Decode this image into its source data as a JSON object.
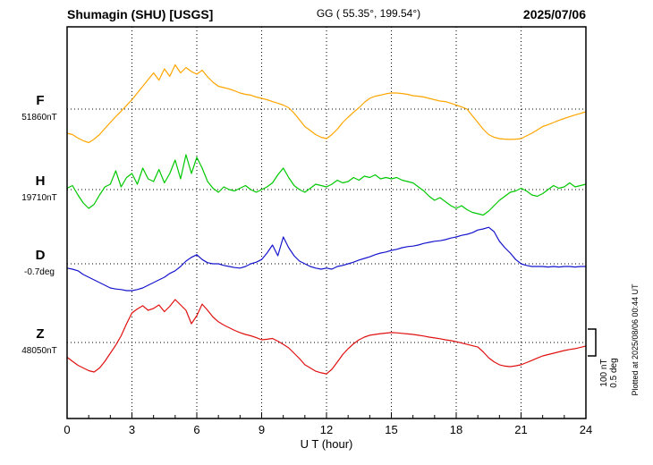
{
  "header": {
    "station": "Shumagin (SHU)  [USGS]",
    "coords": "GG ( 55.35°, 199.54°)",
    "date": "2025/07/06"
  },
  "scale_bar": {
    "line1": "100 nT",
    "line2": "0.5 deg"
  },
  "side_note": "Plotted at 2025/08/06 00:44 UT",
  "chart_data": {
    "type": "line",
    "title": "Shumagin (SHU) [USGS] magnetogram 2025/07/06",
    "xlabel": "U T (hour)",
    "x_range": [
      0,
      24
    ],
    "x_ticks": [
      0,
      3,
      6,
      9,
      12,
      15,
      18,
      21,
      24
    ],
    "grid": "dotted vertical every 3 hours, dotted horizontal at each trace baseline",
    "sample_interval_hours": 0.25,
    "scale": {
      "nT_per_div": 100,
      "deg_per_div": 0.5
    },
    "series": [
      {
        "name": "F",
        "baseline_label": "51860nT",
        "baseline_value": 51860,
        "unit": "nT",
        "color": "#FFA500",
        "values": [
          -90,
          -95,
          -108,
          -118,
          -125,
          -112,
          -95,
          -72,
          -50,
          -28,
          -8,
          14,
          35,
          60,
          85,
          110,
          135,
          108,
          150,
          122,
          165,
          135,
          155,
          140,
          130,
          145,
          120,
          100,
          85,
          80,
          75,
          68,
          60,
          55,
          52,
          45,
          40,
          35,
          28,
          22,
          15,
          5,
          -15,
          -40,
          -65,
          -80,
          -95,
          -105,
          -110,
          -95,
          -75,
          -50,
          -30,
          -12,
          5,
          25,
          40,
          48,
          52,
          57,
          60,
          60,
          58,
          55,
          50,
          48,
          45,
          40,
          35,
          30,
          28,
          22,
          15,
          8,
          0,
          -25,
          -50,
          -75,
          -95,
          -105,
          -110,
          -112,
          -113,
          -112,
          -110,
          -100,
          -90,
          -78,
          -65,
          -58,
          -50,
          -42,
          -35,
          -28,
          -22,
          -16,
          -10
        ]
      },
      {
        "name": "H",
        "baseline_label": "19710nT",
        "baseline_value": 19710,
        "unit": "nT",
        "color": "#00C800",
        "values": [
          5,
          15,
          -20,
          -50,
          -70,
          -55,
          -20,
          10,
          20,
          70,
          10,
          45,
          60,
          20,
          80,
          40,
          30,
          75,
          25,
          60,
          110,
          40,
          130,
          60,
          120,
          80,
          30,
          5,
          -10,
          10,
          0,
          -5,
          5,
          15,
          0,
          -10,
          0,
          10,
          25,
          55,
          80,
          45,
          15,
          0,
          -10,
          5,
          20,
          15,
          10,
          20,
          35,
          25,
          30,
          45,
          35,
          50,
          45,
          55,
          40,
          45,
          40,
          45,
          35,
          30,
          25,
          10,
          -5,
          -25,
          -40,
          -30,
          -45,
          -60,
          -70,
          -60,
          -75,
          -85,
          -90,
          -95,
          -80,
          -60,
          -40,
          -25,
          -10,
          -5,
          5,
          -5,
          -20,
          -25,
          -15,
          0,
          15,
          5,
          10,
          25,
          10,
          15,
          20
        ]
      },
      {
        "name": "D",
        "baseline_label": "-0.7deg",
        "baseline_value": -0.7,
        "unit": "deg",
        "color": "#1515CD",
        "values": [
          -0.08,
          -0.1,
          -0.13,
          -0.2,
          -0.25,
          -0.3,
          -0.35,
          -0.4,
          -0.45,
          -0.47,
          -0.48,
          -0.5,
          -0.5,
          -0.48,
          -0.45,
          -0.4,
          -0.35,
          -0.3,
          -0.25,
          -0.18,
          -0.13,
          -0.05,
          0.05,
          0.12,
          0.17,
          0.08,
          0.02,
          0.0,
          0.0,
          -0.03,
          -0.05,
          -0.07,
          -0.08,
          -0.05,
          0.0,
          0.03,
          0.08,
          0.2,
          0.35,
          0.15,
          0.5,
          0.3,
          0.15,
          0.05,
          0.0,
          -0.05,
          -0.08,
          -0.1,
          -0.08,
          -0.1,
          -0.05,
          -0.03,
          0.0,
          0.03,
          0.07,
          0.1,
          0.13,
          0.17,
          0.2,
          0.22,
          0.25,
          0.27,
          0.3,
          0.32,
          0.33,
          0.35,
          0.38,
          0.4,
          0.42,
          0.43,
          0.45,
          0.48,
          0.5,
          0.53,
          0.55,
          0.58,
          0.63,
          0.65,
          0.68,
          0.6,
          0.42,
          0.3,
          0.2,
          0.08,
          0.0,
          -0.03,
          -0.05,
          -0.05,
          -0.05,
          -0.06,
          -0.05,
          -0.06,
          -0.05,
          -0.05,
          -0.06,
          -0.05,
          -0.05
        ]
      },
      {
        "name": "Z",
        "baseline_label": "48050nT",
        "baseline_value": 48050,
        "unit": "nT",
        "color": "#E01010",
        "values": [
          -55,
          -70,
          -85,
          -95,
          -105,
          -110,
          -95,
          -70,
          -40,
          -10,
          25,
          70,
          110,
          125,
          137,
          120,
          127,
          140,
          115,
          135,
          160,
          140,
          120,
          70,
          100,
          143,
          120,
          95,
          77,
          65,
          55,
          45,
          37,
          30,
          25,
          18,
          10,
          12,
          15,
          5,
          -7,
          -20,
          -40,
          -60,
          -83,
          -95,
          -107,
          -113,
          -117,
          -100,
          -73,
          -45,
          -23,
          -5,
          10,
          20,
          27,
          30,
          33,
          35,
          37,
          36,
          34,
          32,
          30,
          27,
          24,
          20,
          17,
          14,
          10,
          7,
          3,
          -2,
          -7,
          -12,
          -17,
          -35,
          -57,
          -72,
          -83,
          -88,
          -90,
          -87,
          -83,
          -75,
          -67,
          -58,
          -50,
          -45,
          -40,
          -35,
          -30,
          -26,
          -23,
          -18,
          -13
        ]
      }
    ]
  }
}
